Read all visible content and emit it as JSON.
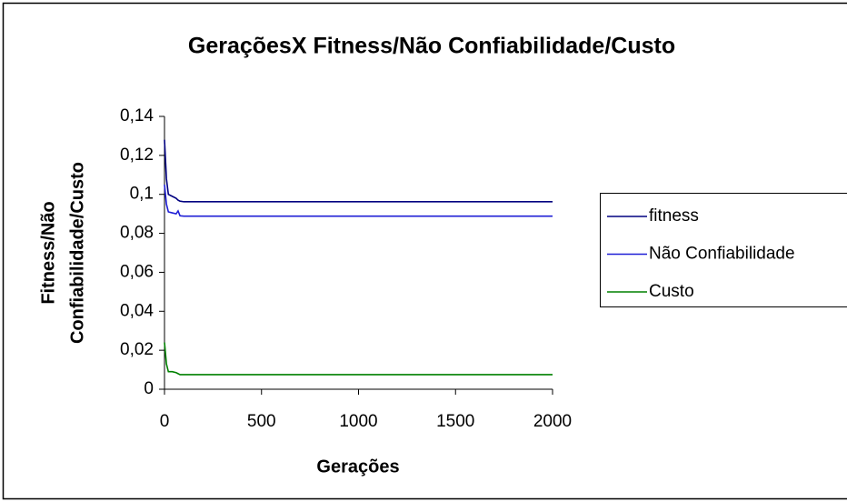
{
  "chart_data": {
    "type": "line",
    "title": "GeraçõesX Fitness/Não Confiabilidade/Custo",
    "xlabel": "Gerações",
    "ylabel": [
      "Fitness/Não",
      "Confiabilidade/Custo"
    ],
    "x": [
      0,
      10,
      20,
      40,
      60,
      70,
      80,
      100,
      2000
    ],
    "series": [
      {
        "name": "fitness",
        "color": "#000080",
        "values": [
          0.128,
          0.108,
          0.1,
          0.099,
          0.098,
          0.097,
          0.0965,
          0.0962,
          0.0962
        ]
      },
      {
        "name": "Não Confiabilidade",
        "color": "#1f1fd6",
        "values": [
          0.105,
          0.095,
          0.091,
          0.0905,
          0.09,
          0.0915,
          0.089,
          0.0888,
          0.0888
        ]
      },
      {
        "name": "Custo",
        "color": "#008000",
        "values": [
          0.024,
          0.013,
          0.009,
          0.009,
          0.0085,
          0.008,
          0.0075,
          0.0075,
          0.0075
        ]
      }
    ],
    "xlim": [
      0,
      2000
    ],
    "xticks": [
      0,
      500,
      1000,
      1500,
      2000
    ],
    "ylim": [
      0,
      0.14
    ],
    "yticks": [
      0,
      {
        "value": 0.02,
        "label": "0,02"
      },
      {
        "value": 0.04,
        "label": "0,04"
      },
      {
        "value": 0.06,
        "label": "0,06"
      },
      {
        "value": 0.08,
        "label": "0,08"
      },
      {
        "value": 0.1,
        "label": "0,1"
      },
      {
        "value": 0.12,
        "label": "0,12"
      },
      {
        "value": 0.14,
        "label": "0,14"
      }
    ],
    "grid": false,
    "legend": "right"
  }
}
